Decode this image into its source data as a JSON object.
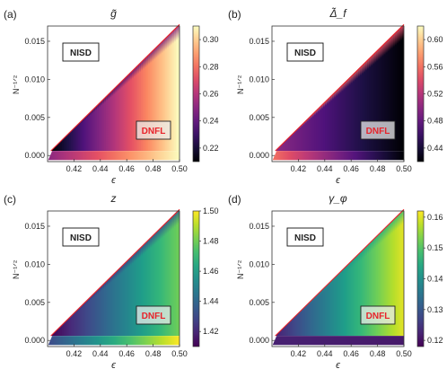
{
  "chart_data": [
    {
      "type": "heatmap",
      "panel": "(a)",
      "title": "g̃",
      "xlabel": "ϵ",
      "ylabel": "N⁻¹ᐟ²",
      "xlim": [
        0.4,
        0.5
      ],
      "ylim": [
        -0.0008,
        0.017
      ],
      "xticks": [
        "0.42",
        "0.44",
        "0.46",
        "0.48",
        "0.50"
      ],
      "yticks": [
        "0.000",
        "0.005",
        "0.010",
        "0.015"
      ],
      "colorbar": {
        "ticks": [
          "0.22",
          "0.24",
          "0.26",
          "0.28",
          "0.30"
        ],
        "min": 0.21,
        "max": 0.31,
        "colormap": "magma"
      },
      "regions": {
        "upper_left": "NISD",
        "lower_right": "DNFL"
      },
      "field": {
        "x_low": 0.21,
        "x_high": 0.31,
        "diagonal_value": 0.21,
        "bottom_strip_left": 0.25,
        "bottom_strip_right": 0.31
      }
    },
    {
      "type": "heatmap",
      "panel": "(b)",
      "title": "Δ̃_f",
      "xlabel": "ϵ",
      "ylabel": "N⁻¹ᐟ²",
      "xlim": [
        0.4,
        0.5
      ],
      "ylim": [
        -0.0008,
        0.017
      ],
      "xticks": [
        "0.42",
        "0.44",
        "0.46",
        "0.48",
        "0.50"
      ],
      "yticks": [
        "0.000",
        "0.005",
        "0.010",
        "0.015"
      ],
      "colorbar": {
        "ticks": [
          "0.44",
          "0.48",
          "0.52",
          "0.56",
          "0.60"
        ],
        "min": 0.42,
        "max": 0.62,
        "colormap": "magma"
      },
      "regions": {
        "upper_left": "NISD",
        "lower_right": "DNFL"
      },
      "field": {
        "x_low": 0.5,
        "x_high": 0.42,
        "diagonal_value": 0.62,
        "bottom_strip_left": 0.56,
        "bottom_strip_right": 0.42
      }
    },
    {
      "type": "heatmap",
      "panel": "(c)",
      "title": "z",
      "xlabel": "ϵ",
      "ylabel": "N⁻¹ᐟ²",
      "xlim": [
        0.4,
        0.5
      ],
      "ylim": [
        -0.0008,
        0.017
      ],
      "xticks": [
        "0.42",
        "0.44",
        "0.46",
        "0.48",
        "0.50"
      ],
      "yticks": [
        "0.000",
        "0.005",
        "0.010",
        "0.015"
      ],
      "colorbar": {
        "ticks": [
          "1.42",
          "1.44",
          "1.46",
          "1.48",
          "1.50"
        ],
        "min": 1.41,
        "max": 1.5,
        "colormap": "viridis"
      },
      "regions": {
        "upper_left": "NISD",
        "lower_right": "DNFL"
      },
      "field": {
        "x_low": 1.41,
        "x_high": 1.48,
        "diagonal_value": 1.41,
        "bottom_strip_left": 1.43,
        "bottom_strip_right": 1.5
      }
    },
    {
      "type": "heatmap",
      "panel": "(d)",
      "title": "γ_φ",
      "xlabel": "ϵ",
      "ylabel": "N⁻¹ᐟ²",
      "xlim": [
        0.4,
        0.5
      ],
      "ylim": [
        -0.0008,
        0.017
      ],
      "xticks": [
        "0.42",
        "0.44",
        "0.46",
        "0.48",
        "0.50"
      ],
      "yticks": [
        "0.000",
        "0.005",
        "0.010",
        "0.015"
      ],
      "colorbar": {
        "ticks": [
          "0.12",
          "0.13",
          "0.14",
          "0.15",
          "0.16"
        ],
        "min": 0.118,
        "max": 0.162,
        "colormap": "viridis"
      },
      "regions": {
        "upper_left": "NISD",
        "lower_right": "DNFL"
      },
      "field": {
        "x_low": 0.122,
        "x_high": 0.16,
        "diagonal_value": 0.14,
        "bottom_strip_left": 0.122,
        "bottom_strip_right": 0.121
      }
    }
  ],
  "colors": {
    "border_line": "#e8232a",
    "dnfl_text": "#e8232a",
    "nisd_text": "#111111"
  }
}
